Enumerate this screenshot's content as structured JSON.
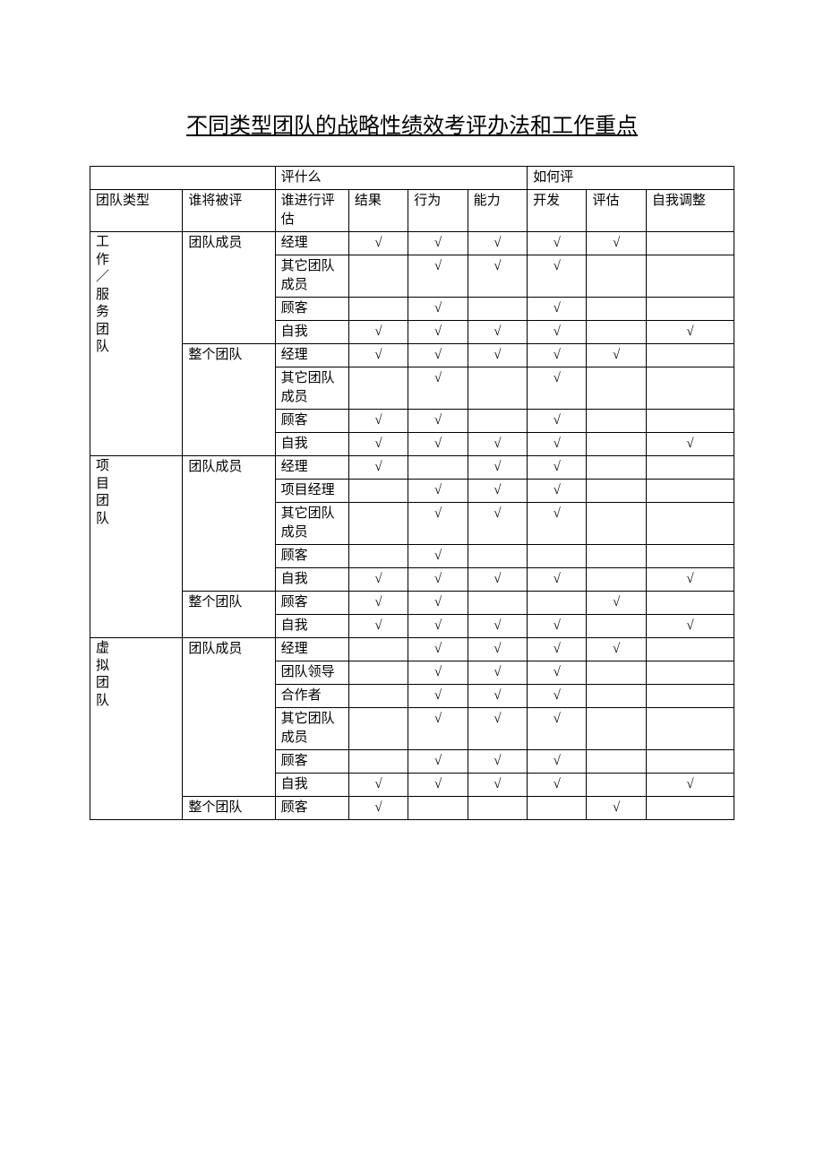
{
  "title": "不同类型团队的战略性绩效考评办法和工作重点",
  "headers": {
    "group_what": "评什么",
    "group_how": "如何评",
    "team_type": "团队类型",
    "who_evaluated": "谁将被评",
    "who_evaluates": "谁进行评估",
    "result": "结果",
    "behavior": "行为",
    "ability": "能力",
    "develop": "开发",
    "assess": "评估",
    "self_adjust": "自我调整"
  },
  "check": "√",
  "team_types": {
    "work_service": "工作／服务团队",
    "project": "项目团队",
    "virtual": "虚拟团队"
  },
  "subjects": {
    "team_member": "团队成员",
    "whole_team": "整个团队"
  },
  "evaluators": {
    "manager": "经理",
    "other_members": "其它团队成员",
    "customer": "顾客",
    "self": "自我",
    "project_manager": "项目经理",
    "team_leader": "团队领导",
    "collaborator": "合作者"
  },
  "rows": [
    {
      "team_type": "work_service",
      "team_type_span": 8,
      "subject": "team_member",
      "subject_span": 4,
      "evaluator": "manager",
      "result": true,
      "behavior": true,
      "ability": true,
      "develop": true,
      "assess": true,
      "self_adjust": false
    },
    {
      "evaluator": "other_members",
      "result": false,
      "behavior": true,
      "ability": true,
      "develop": true,
      "assess": false,
      "self_adjust": false
    },
    {
      "evaluator": "customer",
      "result": false,
      "behavior": true,
      "ability": false,
      "develop": true,
      "assess": false,
      "self_adjust": false
    },
    {
      "evaluator": "self",
      "result": true,
      "behavior": true,
      "ability": true,
      "develop": true,
      "assess": false,
      "self_adjust": true
    },
    {
      "subject": "whole_team",
      "subject_span": 4,
      "evaluator": "manager",
      "result": true,
      "behavior": true,
      "ability": true,
      "develop": true,
      "assess": true,
      "self_adjust": false
    },
    {
      "evaluator": "other_members",
      "result": false,
      "behavior": true,
      "ability": false,
      "develop": true,
      "assess": false,
      "self_adjust": false
    },
    {
      "evaluator": "customer",
      "result": true,
      "behavior": true,
      "ability": false,
      "develop": true,
      "assess": false,
      "self_adjust": false
    },
    {
      "evaluator": "self",
      "result": true,
      "behavior": true,
      "ability": true,
      "develop": true,
      "assess": false,
      "self_adjust": true
    },
    {
      "team_type": "project",
      "team_type_span": 7,
      "subject": "team_member",
      "subject_span": 5,
      "evaluator": "manager",
      "result": true,
      "behavior": false,
      "ability": true,
      "develop": true,
      "assess": false,
      "self_adjust": false
    },
    {
      "evaluator": "project_manager",
      "result": false,
      "behavior": true,
      "ability": true,
      "develop": true,
      "assess": false,
      "self_adjust": false
    },
    {
      "evaluator": "other_members",
      "result": false,
      "behavior": true,
      "ability": true,
      "develop": true,
      "assess": false,
      "self_adjust": false
    },
    {
      "evaluator": "customer",
      "result": false,
      "behavior": true,
      "ability": false,
      "develop": false,
      "assess": false,
      "self_adjust": false
    },
    {
      "evaluator": "self",
      "result": true,
      "behavior": true,
      "ability": true,
      "develop": true,
      "assess": false,
      "self_adjust": true
    },
    {
      "subject": "whole_team",
      "subject_span": 2,
      "evaluator": "customer",
      "result": true,
      "behavior": true,
      "ability": false,
      "develop": false,
      "assess": true,
      "self_adjust": false
    },
    {
      "evaluator": "self",
      "result": true,
      "behavior": true,
      "ability": true,
      "develop": true,
      "assess": false,
      "self_adjust": true
    },
    {
      "team_type": "virtual",
      "team_type_span": 7,
      "subject": "team_member",
      "subject_span": 6,
      "evaluator": "manager",
      "result": false,
      "behavior": true,
      "ability": true,
      "develop": true,
      "assess": true,
      "self_adjust": false
    },
    {
      "evaluator": "team_leader",
      "result": false,
      "behavior": true,
      "ability": true,
      "develop": true,
      "assess": false,
      "self_adjust": false
    },
    {
      "evaluator": "collaborator",
      "result": false,
      "behavior": true,
      "ability": true,
      "develop": true,
      "assess": false,
      "self_adjust": false
    },
    {
      "evaluator": "other_members",
      "result": false,
      "behavior": true,
      "ability": true,
      "develop": true,
      "assess": false,
      "self_adjust": false
    },
    {
      "evaluator": "customer",
      "result": false,
      "behavior": true,
      "ability": true,
      "develop": true,
      "assess": false,
      "self_adjust": false
    },
    {
      "evaluator": "self",
      "result": true,
      "behavior": true,
      "ability": true,
      "develop": true,
      "assess": false,
      "self_adjust": true
    },
    {
      "subject": "whole_team",
      "subject_span": 1,
      "evaluator": "customer",
      "result": true,
      "behavior": false,
      "ability": false,
      "develop": false,
      "assess": true,
      "self_adjust": false
    }
  ]
}
